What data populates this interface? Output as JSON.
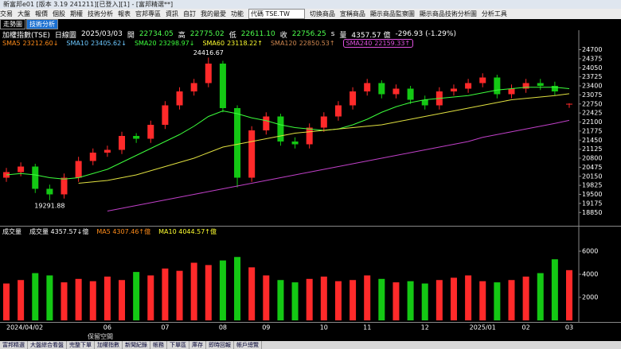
{
  "window": {
    "title": "新富邦e01 [版本 3.19 241211][已登入][1] - [富邦精選**]",
    "menu": [
      "交易",
      "大盤",
      "報價",
      "個股",
      "期權",
      "技術分析",
      "報表",
      "官邦專區",
      "資訊",
      "自訂",
      "我的最愛",
      "功能"
    ],
    "symbol": "代碼 TSE.TW",
    "tools": [
      "切換商品",
      "宣稱商品",
      "顯示商品監察圖",
      "顯示商品技術分析圖",
      "分析工具"
    ],
    "tabs": [
      "走勢圖",
      "技術分析"
    ]
  },
  "info": {
    "name": "加權指數(TSE)",
    "period": "日線圖",
    "date": "2025/03/03",
    "open_label": "開",
    "open": "22734.05",
    "high_label": "高",
    "high": "22775.02",
    "low_label": "低",
    "low": "22611.10",
    "close_label": "收",
    "close": "22756.25",
    "s": "s",
    "volume_label": "量",
    "volume": "4357.57 億",
    "change": "-296.93 (-1.29%)"
  },
  "legend": [
    {
      "name": "SMA5",
      "value": "23212.60↓",
      "color": "#ff8c1a"
    },
    {
      "name": "SMA10",
      "value": "23405.62↓",
      "color": "#6cc8ff"
    },
    {
      "name": "SMA20",
      "value": "23298.97↓",
      "color": "#3cff3c"
    },
    {
      "name": "SMA60",
      "value": "23118.22↑",
      "color": "#ffff30"
    },
    {
      "name": "SMA120",
      "value": "22850.53↑",
      "color": "#d08850"
    },
    {
      "name": "SMA240",
      "value": "22159.33↑",
      "color": "#e050e0"
    }
  ],
  "chart_data": {
    "type": "candlestick",
    "categories": [
      "2024/04/02",
      null,
      null,
      null,
      null,
      null,
      null,
      "06",
      null,
      null,
      null,
      "07",
      null,
      null,
      null,
      "08",
      null,
      null,
      "09",
      null,
      null,
      null,
      "10",
      null,
      null,
      "11",
      null,
      null,
      null,
      "12",
      null,
      null,
      null,
      "2025/01",
      null,
      null,
      "02",
      null,
      null,
      "03"
    ],
    "open": [
      20100,
      20300,
      20500,
      19700,
      19500,
      20100,
      20700,
      21000,
      21100,
      21600,
      21500,
      22000,
      22700,
      23200,
      23500,
      24200,
      22600,
      20100,
      21800,
      22300,
      21400,
      21300,
      21900,
      22300,
      22700,
      23200,
      23500,
      23100,
      23300,
      22900,
      22700,
      23200,
      23300,
      23500,
      23700,
      23100,
      23300,
      23500,
      23400,
      22734.05
    ],
    "high": [
      20450,
      20650,
      20600,
      19850,
      20250,
      20850,
      21150,
      21250,
      21750,
      21700,
      22150,
      22850,
      23350,
      23650,
      24416.67,
      24300,
      22700,
      21950,
      22450,
      22400,
      21550,
      22050,
      22450,
      22850,
      23350,
      23650,
      23600,
      23450,
      23400,
      23050,
      23350,
      23450,
      23650,
      23850,
      23800,
      23450,
      23650,
      23650,
      23550,
      22775.02
    ],
    "low": [
      19950,
      20150,
      19550,
      19291.88,
      19350,
      19950,
      20550,
      20850,
      20950,
      21350,
      21350,
      21850,
      22550,
      23050,
      23350,
      22450,
      19750,
      19950,
      21650,
      21250,
      21150,
      21150,
      21750,
      22150,
      22550,
      23050,
      22950,
      22950,
      22750,
      22550,
      22550,
      23050,
      23150,
      23350,
      22950,
      22950,
      23150,
      23250,
      23050,
      22611.1
    ],
    "close": [
      20300,
      20500,
      19700,
      19500,
      20100,
      20700,
      21000,
      21100,
      21600,
      21500,
      22000,
      22700,
      23200,
      23500,
      24200,
      22600,
      20100,
      21800,
      22300,
      21400,
      21300,
      21900,
      22300,
      22700,
      23200,
      23500,
      23100,
      23300,
      22900,
      22700,
      23200,
      23300,
      23500,
      23700,
      23100,
      23300,
      23500,
      23400,
      23200,
      22756.25
    ],
    "up_color": "#ff2a2a",
    "down_color": "#14c814",
    "series": [
      {
        "color": "#3cff3c",
        "values": [
          20200,
          20250,
          20200,
          20100,
          20050,
          20100,
          20250,
          20400,
          20650,
          20900,
          21150,
          21400,
          21650,
          21950,
          22300,
          22500,
          22400,
          22250,
          22150,
          22000,
          21900,
          21850,
          21800,
          21850,
          22000,
          22200,
          22450,
          22650,
          22800,
          22900,
          22950,
          23000,
          23050,
          23150,
          23250,
          23300,
          23350,
          23350,
          23350,
          23298.97
        ]
      },
      {
        "color": "#e0e040",
        "values": [
          null,
          null,
          null,
          null,
          null,
          19900,
          19950,
          20000,
          20100,
          20200,
          20350,
          20500,
          20650,
          20800,
          21000,
          21200,
          21300,
          21400,
          21500,
          21600,
          21700,
          21750,
          21800,
          21850,
          21900,
          21950,
          22000,
          22100,
          22200,
          22300,
          22400,
          22500,
          22600,
          22700,
          22800,
          22900,
          22950,
          23000,
          23050,
          23118.22
        ]
      },
      {
        "color": "#c040c8",
        "values": [
          null,
          null,
          null,
          null,
          null,
          null,
          null,
          18900,
          19000,
          19100,
          19200,
          19300,
          19400,
          19500,
          19600,
          19700,
          19800,
          19900,
          20000,
          20100,
          20200,
          20300,
          20400,
          20500,
          20600,
          20700,
          20800,
          20900,
          21000,
          21100,
          21200,
          21300,
          21400,
          21550,
          21650,
          21750,
          21850,
          21950,
          22050,
          22159.33
        ]
      }
    ],
    "ylim": [
      18400,
      25000
    ],
    "yticks": [
      24700,
      24375,
      24050,
      23725,
      23400,
      23075,
      22750,
      22425,
      22100,
      21775,
      21450,
      21125,
      20800,
      20475,
      20150,
      19825,
      19500,
      19175,
      18850
    ],
    "volume": {
      "title": "成交量",
      "legend": [
        {
          "text": "成交量 4357.57↓億",
          "color": "#ffffff"
        },
        {
          "text": "MA5 4307.46↑億",
          "color": "#ff8c1a"
        },
        {
          "text": "MA10 4044.57↑億",
          "color": "#ffff30"
        }
      ],
      "values": [
        3200,
        3500,
        4100,
        3900,
        3300,
        3600,
        3400,
        3800,
        3500,
        4200,
        3900,
        4500,
        4300,
        5000,
        4800,
        5200,
        5500,
        4600,
        3900,
        3500,
        3300,
        3600,
        3800,
        3400,
        3500,
        3900,
        3600,
        3300,
        3400,
        3200,
        3500,
        3700,
        3900,
        3400,
        3300,
        3500,
        3800,
        4100,
        5300,
        4357.57
      ],
      "ylim": [
        0,
        8000
      ],
      "yticks": [
        2000,
        4000,
        6000
      ]
    }
  },
  "footer": "保留空間",
  "status": [
    "富邦精選",
    "大盤綜合看盤",
    "完整下單",
    "加權指數",
    "新聞紀錄",
    "帳務",
    "下單區",
    "庫存",
    "即時回報",
    "帳戶總覽"
  ]
}
